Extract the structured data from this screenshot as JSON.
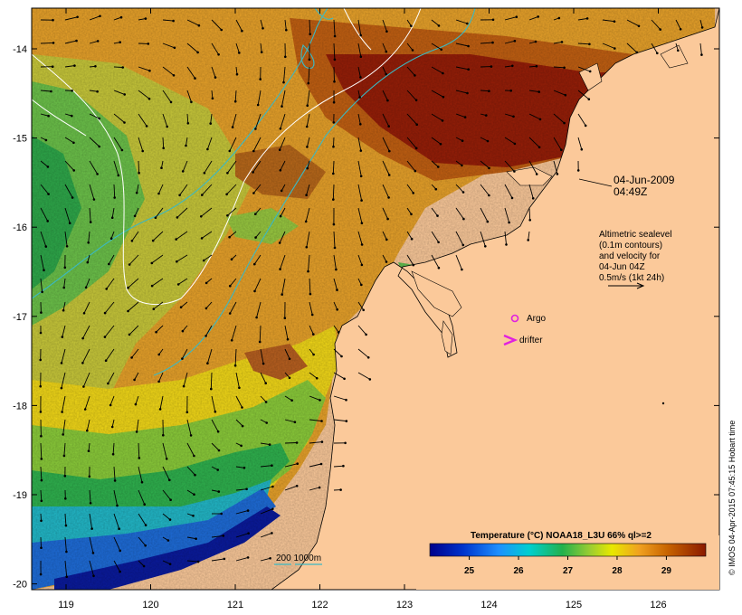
{
  "map": {
    "date": "04-Jun-2009",
    "time": "04:49Z",
    "legend_lines": [
      "Altimetric sealevel",
      "(0.1m contours)",
      "and velocity for",
      "04-Jun 04Z",
      "0.5m/s (1kt 24h)"
    ],
    "markers": {
      "argo": "Argo",
      "drifter": "drifter"
    },
    "depth_label": "200  1000m",
    "credit": "© IMOS 04-Apr-2015 07:45:15 Hobart time",
    "colorbar": {
      "title": "Temperature (°C) NOAA18_L3U 66% ql>=2",
      "ticks": [
        "25",
        "26",
        "27",
        "28",
        "29"
      ],
      "range": [
        24.2,
        29.8
      ]
    },
    "lat_ticks": [
      "-14",
      "-15",
      "-16",
      "-17",
      "-18",
      "-19",
      "-20"
    ],
    "lon_ticks": [
      "119",
      "120",
      "121",
      "122",
      "123",
      "124",
      "125",
      "126"
    ],
    "colors": {
      "land": "#fbc99a",
      "coast": "#000000",
      "isobath": "#3ab9c4",
      "sealevel_contour": "#ffffff",
      "marker": "#e020e0"
    }
  }
}
